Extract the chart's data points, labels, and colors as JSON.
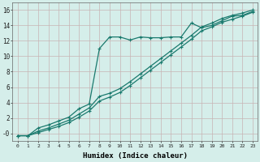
{
  "xlabel": "Humidex (Indice chaleur)",
  "bg_color": "#d5eeea",
  "line_color": "#1a7a6e",
  "grid_color": "#c8b4b4",
  "xlim": [
    -0.5,
    23.5
  ],
  "ylim": [
    -1.0,
    17.0
  ],
  "xticks": [
    0,
    1,
    2,
    3,
    4,
    5,
    6,
    7,
    8,
    9,
    10,
    11,
    12,
    13,
    14,
    15,
    16,
    17,
    18,
    19,
    20,
    21,
    22,
    23
  ],
  "yticks": [
    0,
    2,
    4,
    6,
    8,
    10,
    12,
    14,
    16
  ],
  "ytick_labels": [
    "-0",
    "2",
    "4",
    "6",
    "8",
    "10",
    "12",
    "14",
    "16"
  ],
  "line1_x": [
    0,
    1,
    2,
    3,
    4,
    5,
    6,
    7,
    8,
    9,
    10,
    11,
    12,
    13,
    14,
    15,
    16,
    17,
    18,
    19,
    20,
    21,
    22,
    23
  ],
  "line1_y": [
    -0.3,
    -0.3,
    0.7,
    1.1,
    1.6,
    2.1,
    3.2,
    3.8,
    11.0,
    12.5,
    12.5,
    12.1,
    12.5,
    12.4,
    12.4,
    12.5,
    12.5,
    14.3,
    13.7,
    14.0,
    14.6,
    15.2,
    15.3,
    15.8
  ],
  "line2_x": [
    0,
    1,
    2,
    3,
    4,
    5,
    6,
    7,
    8,
    9,
    10,
    11,
    12,
    13,
    14,
    15,
    16,
    17,
    18,
    19,
    20,
    21,
    22,
    23
  ],
  "line2_y": [
    -0.3,
    -0.3,
    0.3,
    0.7,
    1.2,
    1.7,
    2.5,
    3.3,
    4.8,
    5.2,
    5.8,
    6.7,
    7.7,
    8.7,
    9.7,
    10.7,
    11.7,
    12.7,
    13.8,
    14.3,
    14.9,
    15.3,
    15.6,
    16.0
  ],
  "line3_x": [
    0,
    1,
    2,
    3,
    4,
    5,
    6,
    7,
    8,
    9,
    10,
    11,
    12,
    13,
    14,
    15,
    16,
    17,
    18,
    19,
    20,
    21,
    22,
    23
  ],
  "line3_y": [
    -0.3,
    -0.3,
    0.1,
    0.5,
    0.9,
    1.4,
    2.1,
    2.9,
    4.2,
    4.7,
    5.3,
    6.2,
    7.2,
    8.2,
    9.2,
    10.2,
    11.2,
    12.2,
    13.3,
    13.8,
    14.4,
    14.8,
    15.2,
    15.7
  ]
}
